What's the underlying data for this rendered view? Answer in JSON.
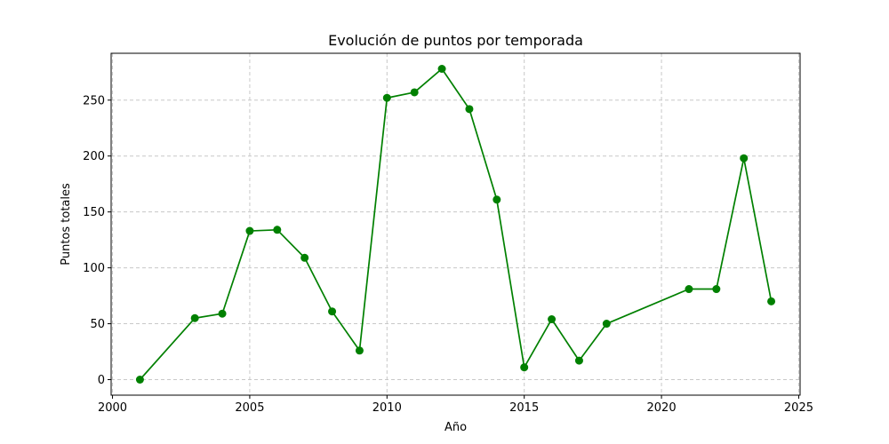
{
  "chart_data": {
    "type": "line",
    "title": "Evolución de puntos por temporada",
    "xlabel": "Año",
    "ylabel": "Puntos totales",
    "xlim": [
      1999.95,
      2025.05
    ],
    "ylim": [
      -13.9,
      291.9
    ],
    "xticks": [
      2000,
      2005,
      2010,
      2015,
      2020,
      2025
    ],
    "yticks": [
      0,
      50,
      100,
      150,
      200,
      250
    ],
    "grid": true,
    "color": "#008000",
    "series": [
      {
        "x": [
          2001,
          2003,
          2004,
          2005,
          2006,
          2007,
          2008,
          2009,
          2010,
          2011,
          2012,
          2013,
          2014,
          2015,
          2016,
          2017,
          2018,
          2021,
          2022,
          2023,
          2024
        ],
        "values": [
          0,
          55,
          59,
          133,
          134,
          109,
          61,
          26,
          252,
          257,
          278,
          242,
          161,
          11,
          54,
          17,
          50,
          81,
          81,
          198,
          70
        ]
      }
    ]
  }
}
